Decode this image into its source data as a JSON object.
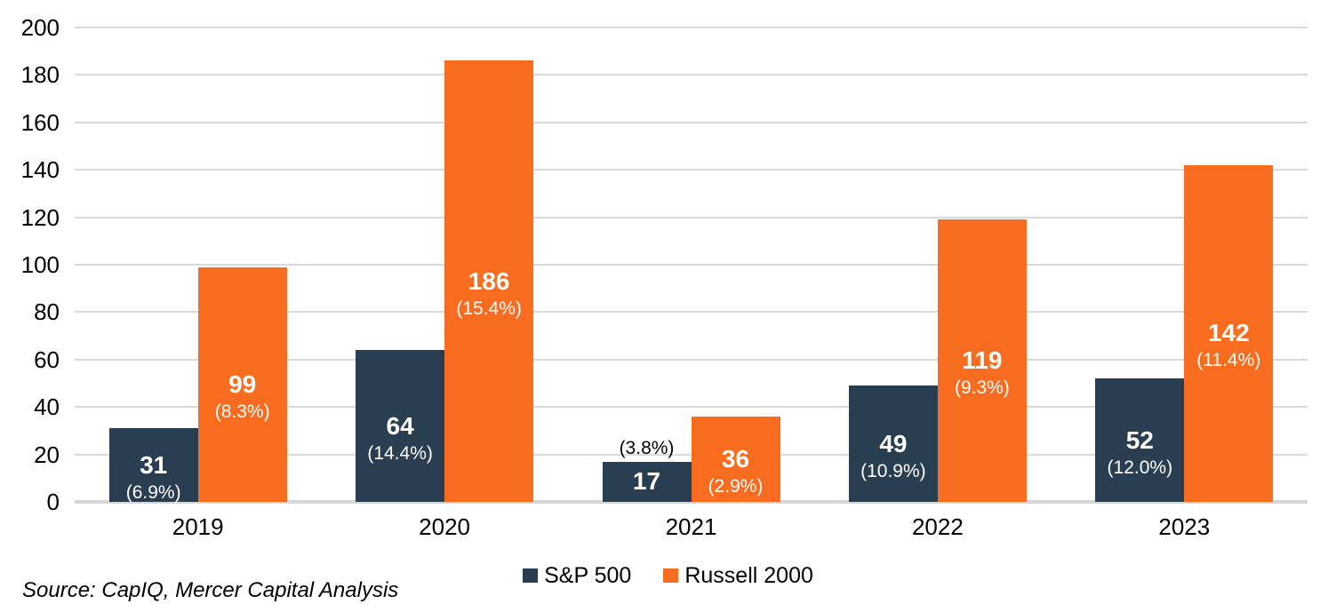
{
  "chart_data": {
    "type": "bar",
    "title": "",
    "categories": [
      "2019",
      "2020",
      "2021",
      "2022",
      "2023"
    ],
    "series": [
      {
        "name": "S&P 500",
        "color": "#2A3E52",
        "values": [
          31,
          64,
          17,
          49,
          52
        ],
        "pct_labels": [
          "(6.9%)",
          "(14.4%)",
          "(3.8%)",
          "(10.9%)",
          "(12.0%)"
        ],
        "pct_label_position": [
          "inside",
          "inside",
          "above-bar",
          "inside",
          "inside"
        ]
      },
      {
        "name": "Russell 2000",
        "color": "#F76C1E",
        "values": [
          99,
          186,
          36,
          119,
          142
        ],
        "pct_labels": [
          "(8.3%)",
          "(15.4%)",
          "(2.9%)",
          "(9.3%)",
          "(11.4%)"
        ],
        "pct_label_position": [
          "inside",
          "inside",
          "inside",
          "inside",
          "inside"
        ]
      }
    ],
    "ylim": [
      0,
      200
    ],
    "yticks": [
      0,
      20,
      40,
      60,
      80,
      100,
      120,
      140,
      160,
      180,
      200
    ],
    "grid": true,
    "gridline_color": "#D9D9D9",
    "inside_label_color": "#FFFFFF",
    "outside_label_color": "#000000",
    "legend_position": "bottom-center",
    "source_note": "Source: CapIQ, Mercer Capital Analysis"
  }
}
